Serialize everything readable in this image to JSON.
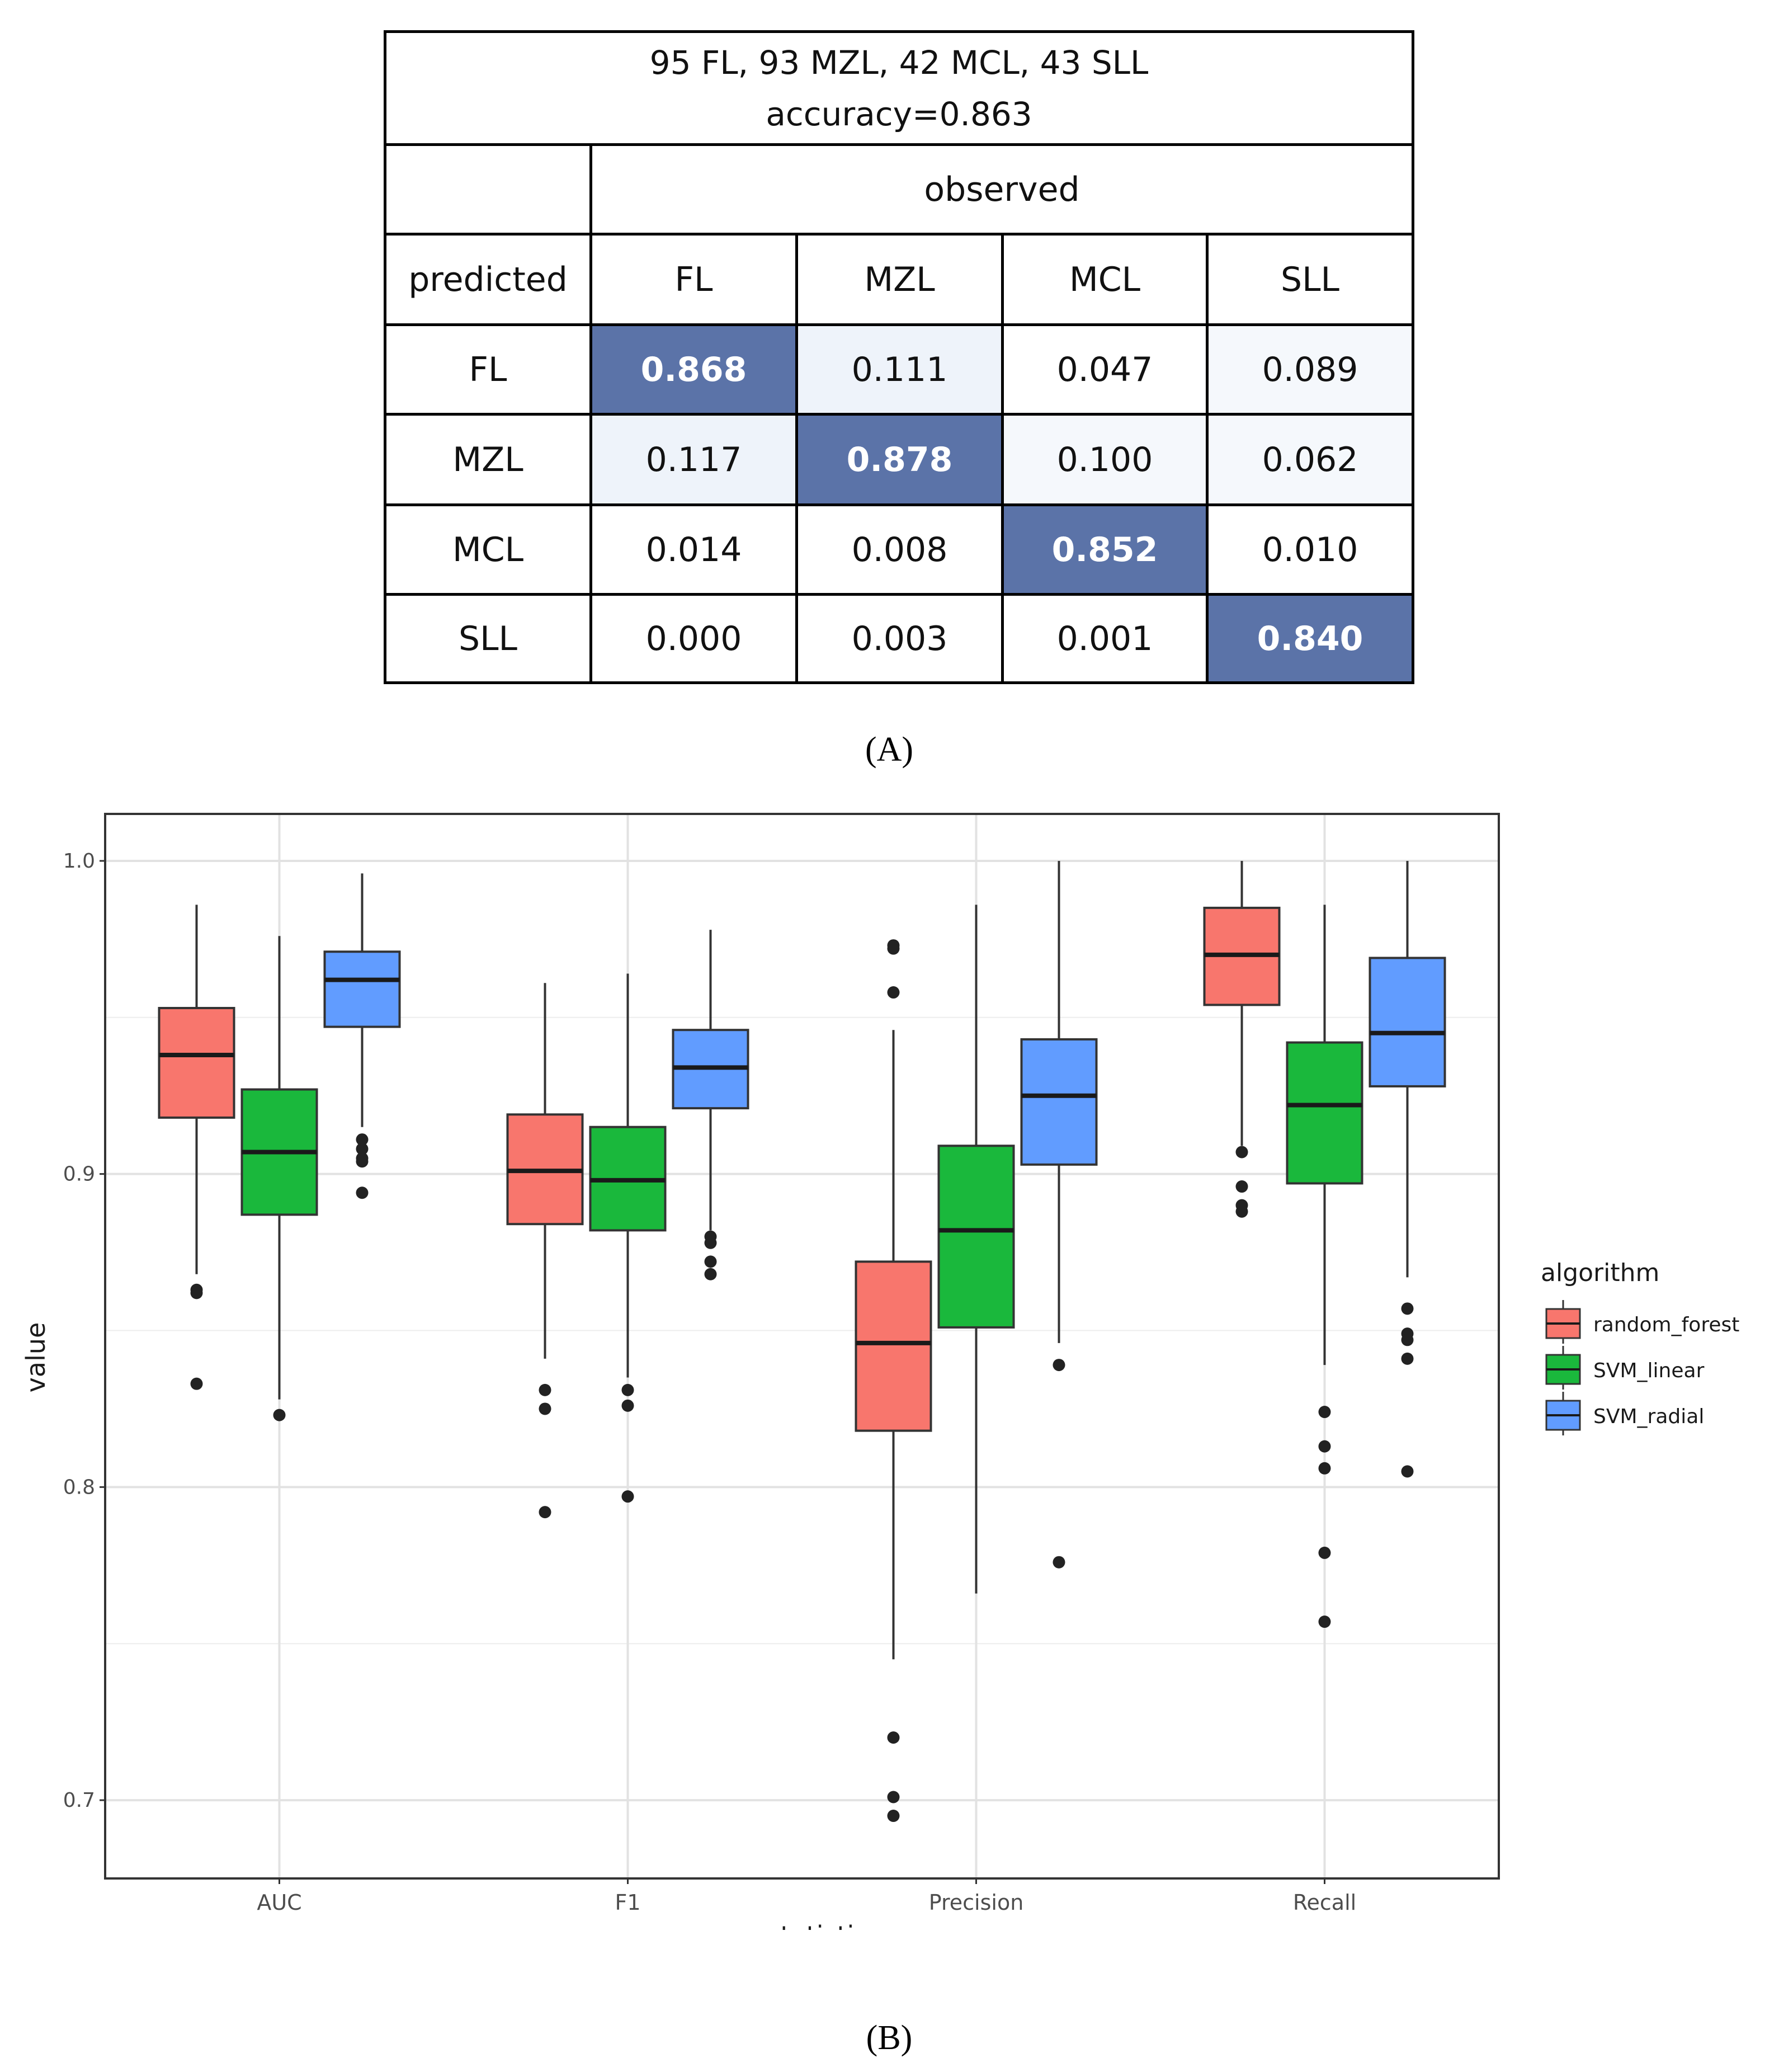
{
  "panel_a": {
    "title_line1": "95 FL, 93 MZL, 42 MCL, 43 SLL",
    "title_line2": "accuracy=0.863",
    "observed_label": "observed",
    "predicted_label": "predicted",
    "columns": [
      "FL",
      "MZL",
      "MCL",
      "SLL"
    ],
    "rows": [
      {
        "label": "FL",
        "cells": [
          "0.868",
          "0.111",
          "0.047",
          "0.089"
        ]
      },
      {
        "label": "MZL",
        "cells": [
          "0.117",
          "0.878",
          "0.100",
          "0.062"
        ]
      },
      {
        "label": "MCL",
        "cells": [
          "0.014",
          "0.008",
          "0.852",
          "0.010"
        ]
      },
      {
        "label": "SLL",
        "cells": [
          "0.000",
          "0.003",
          "0.001",
          "0.840"
        ]
      }
    ],
    "colors": {
      "diagonal": "#5b73a8",
      "light": "#eef3fa",
      "faint": "#f5f8fc",
      "white": "#ffffff"
    },
    "caption": "(A)"
  },
  "chart_data": {
    "type": "box",
    "xlabel": "statistics",
    "ylabel": "value",
    "categories": [
      "AUC",
      "F1",
      "Precision",
      "Recall"
    ],
    "ylim": [
      0.675,
      1.015
    ],
    "yticks": [
      0.7,
      0.8,
      0.9,
      1.0
    ],
    "ytick_labels": [
      "0.7",
      "0.8",
      "0.9",
      "1.0"
    ],
    "legend_title": "algorithm",
    "legend_position": "right",
    "series": [
      {
        "name": "random_forest",
        "color": "#F8766D",
        "boxes": [
          {
            "min": 0.868,
            "q1": 0.918,
            "median": 0.938,
            "q3": 0.953,
            "max": 0.986,
            "outliers": [
              0.863,
              0.862,
              0.833
            ]
          },
          {
            "min": 0.841,
            "q1": 0.884,
            "median": 0.901,
            "q3": 0.919,
            "max": 0.961,
            "outliers": [
              0.831,
              0.825,
              0.792
            ]
          },
          {
            "min": 0.745,
            "q1": 0.818,
            "median": 0.846,
            "q3": 0.872,
            "max": 0.946,
            "outliers": [
              0.973,
              0.972,
              0.958,
              0.72,
              0.701,
              0.695
            ]
          },
          {
            "min": 0.909,
            "q1": 0.954,
            "median": 0.97,
            "q3": 0.985,
            "max": 1.0,
            "outliers": [
              0.907,
              0.896,
              0.89,
              0.888
            ]
          }
        ]
      },
      {
        "name": "SVM_linear",
        "color": "#1AB83C",
        "boxes": [
          {
            "min": 0.828,
            "q1": 0.887,
            "median": 0.907,
            "q3": 0.927,
            "max": 0.976,
            "outliers": [
              0.823
            ]
          },
          {
            "min": 0.835,
            "q1": 0.882,
            "median": 0.898,
            "q3": 0.915,
            "max": 0.964,
            "outliers": [
              0.831,
              0.826,
              0.797
            ]
          },
          {
            "min": 0.766,
            "q1": 0.851,
            "median": 0.882,
            "q3": 0.909,
            "max": 0.986,
            "outliers": []
          },
          {
            "min": 0.839,
            "q1": 0.897,
            "median": 0.922,
            "q3": 0.942,
            "max": 0.986,
            "outliers": [
              0.824,
              0.813,
              0.806,
              0.779,
              0.757
            ]
          }
        ]
      },
      {
        "name": "SVM_radial",
        "color": "#619CFF",
        "boxes": [
          {
            "min": 0.915,
            "q1": 0.947,
            "median": 0.962,
            "q3": 0.971,
            "max": 0.996,
            "outliers": [
              0.911,
              0.908,
              0.905,
              0.904,
              0.894
            ]
          },
          {
            "min": 0.882,
            "q1": 0.921,
            "median": 0.934,
            "q3": 0.946,
            "max": 0.978,
            "outliers": [
              0.88,
              0.878,
              0.872,
              0.868
            ]
          },
          {
            "min": 0.846,
            "q1": 0.903,
            "median": 0.925,
            "q3": 0.943,
            "max": 1.0,
            "outliers": [
              0.839,
              0.776
            ]
          },
          {
            "min": 0.867,
            "q1": 0.928,
            "median": 0.945,
            "q3": 0.969,
            "max": 1.0,
            "outliers": [
              0.857,
              0.849,
              0.847,
              0.841,
              0.805
            ]
          }
        ]
      }
    ],
    "caption": "(B)"
  }
}
